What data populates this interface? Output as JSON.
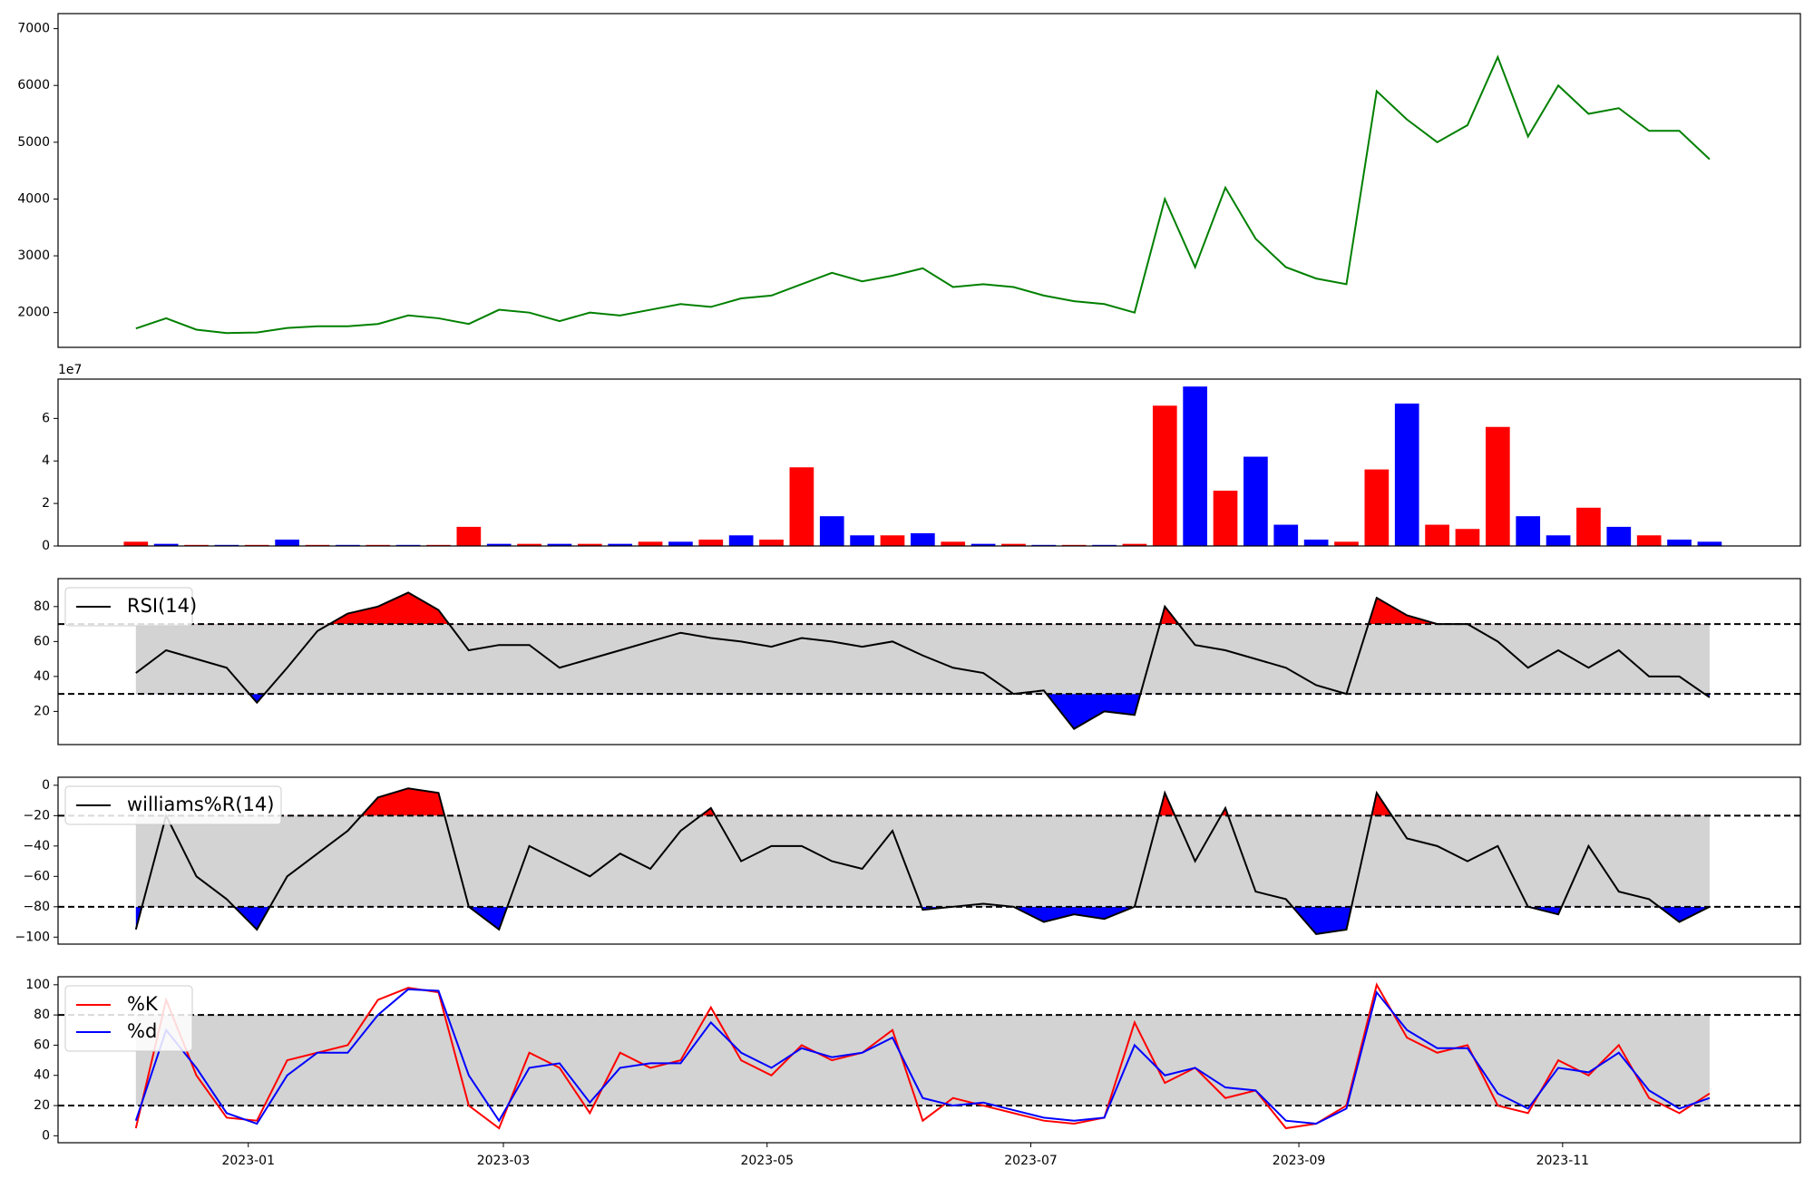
{
  "chart_data": [
    {
      "type": "line",
      "x": [
        -26,
        -19,
        -12,
        -5,
        2,
        9,
        16,
        23,
        30,
        37,
        44,
        51,
        58,
        65,
        72,
        79,
        86,
        93,
        100,
        107,
        114,
        121,
        128,
        135,
        142,
        149,
        156,
        163,
        170,
        177,
        184,
        191,
        198,
        205,
        212,
        219,
        226,
        233,
        240,
        247,
        254,
        261,
        268,
        275,
        282,
        289,
        296,
        303,
        310,
        317,
        324,
        331,
        338
      ],
      "values": [
        1720,
        1900,
        1700,
        1640,
        1650,
        1730,
        1760,
        1760,
        1800,
        1950,
        1900,
        1800,
        2050,
        2000,
        1850,
        2000,
        1950,
        2050,
        2150,
        2100,
        2250,
        2300,
        2500,
        2700,
        2550,
        2650,
        2780,
        2450,
        2500,
        2450,
        2300,
        2200,
        2150,
        2000,
        4000,
        2800,
        4200,
        3300,
        2800,
        2600,
        2500,
        5900,
        5400,
        5000,
        5300,
        6500,
        5100,
        6000,
        5500,
        5600,
        5200,
        5200,
        4700
      ],
      "color": "green",
      "xlim": [
        -44,
        359
      ],
      "ylim": [
        1388,
        7265
      ],
      "yticks": [
        2000,
        3000,
        4000,
        5000,
        6000,
        7000
      ]
    },
    {
      "type": "bar",
      "x": [
        -26,
        -19,
        -12,
        -5,
        2,
        9,
        16,
        23,
        30,
        37,
        44,
        51,
        58,
        65,
        72,
        79,
        86,
        93,
        100,
        107,
        114,
        121,
        128,
        135,
        142,
        149,
        156,
        163,
        170,
        177,
        184,
        191,
        198,
        205,
        212,
        219,
        226,
        233,
        240,
        247,
        254,
        261,
        268,
        275,
        282,
        289,
        296,
        303,
        310,
        317,
        324,
        331,
        338
      ],
      "values": [
        0.2,
        0.1,
        0.05,
        0.05,
        0.05,
        0.3,
        0.05,
        0.05,
        0.05,
        0.05,
        0.05,
        0.9,
        0.1,
        0.1,
        0.1,
        0.1,
        0.1,
        0.2,
        0.2,
        0.3,
        0.5,
        0.3,
        3.7,
        1.4,
        0.5,
        0.5,
        0.6,
        0.2,
        0.1,
        0.1,
        0.05,
        0.05,
        0.05,
        0.1,
        6.6,
        7.5,
        2.6,
        4.2,
        1.0,
        0.3,
        0.2,
        3.6,
        6.7,
        1.0,
        0.8,
        5.6,
        1.4,
        0.5,
        1.8,
        0.9,
        0.5,
        0.3,
        0.2
      ],
      "colors": [
        "red",
        "blue",
        "red",
        "blue",
        "red",
        "blue",
        "red",
        "blue",
        "red",
        "blue",
        "red",
        "red",
        "blue",
        "red",
        "blue",
        "red",
        "blue",
        "red",
        "blue",
        "red",
        "blue",
        "red",
        "red",
        "blue",
        "blue",
        "red",
        "blue",
        "red",
        "blue",
        "red",
        "blue",
        "red",
        "blue",
        "red",
        "red",
        "blue",
        "red",
        "blue",
        "blue",
        "blue",
        "red",
        "red",
        "blue",
        "red",
        "red",
        "red",
        "blue",
        "blue",
        "red",
        "blue",
        "red",
        "blue",
        "blue"
      ],
      "scale_label": "1e7",
      "xlim": [
        -44,
        359
      ],
      "ylim": [
        0,
        7.85
      ],
      "yticks": [
        0,
        2,
        4,
        6
      ]
    },
    {
      "type": "oscillator",
      "x": [
        -26,
        -19,
        -12,
        -5,
        2,
        9,
        16,
        23,
        30,
        37,
        44,
        51,
        58,
        65,
        72,
        79,
        86,
        93,
        100,
        107,
        114,
        121,
        128,
        135,
        142,
        149,
        156,
        163,
        170,
        177,
        184,
        191,
        198,
        205,
        212,
        219,
        226,
        233,
        240,
        247,
        254,
        261,
        268,
        275,
        282,
        289,
        296,
        303,
        310,
        317,
        324,
        331,
        338
      ],
      "series": [
        {
          "name": "RSI(14)",
          "color": "black",
          "fill": true,
          "values": [
            42,
            55,
            50,
            45,
            25,
            45,
            66,
            76,
            80,
            88,
            78,
            55,
            58,
            58,
            45,
            50,
            55,
            60,
            65,
            62,
            60,
            57,
            62,
            60,
            57,
            60,
            52,
            45,
            42,
            30,
            32,
            10,
            20,
            18,
            80,
            58,
            55,
            50,
            45,
            35,
            30,
            85,
            75,
            70,
            70,
            60,
            45,
            55,
            45,
            55,
            40,
            40,
            28
          ]
        }
      ],
      "thresholds": [
        30,
        70
      ],
      "band_color": "lightgray",
      "upper_color": "red",
      "lower_color": "blue",
      "legend": "upper left",
      "xlim": [
        -44,
        359
      ],
      "ylim": [
        1,
        96
      ],
      "yticks": [
        20,
        40,
        60,
        80
      ]
    },
    {
      "type": "oscillator",
      "x": [
        -26,
        -19,
        -12,
        -5,
        2,
        9,
        16,
        23,
        30,
        37,
        44,
        51,
        58,
        65,
        72,
        79,
        86,
        93,
        100,
        107,
        114,
        121,
        128,
        135,
        142,
        149,
        156,
        163,
        170,
        177,
        184,
        191,
        198,
        205,
        212,
        219,
        226,
        233,
        240,
        247,
        254,
        261,
        268,
        275,
        282,
        289,
        296,
        303,
        310,
        317,
        324,
        331,
        338
      ],
      "series": [
        {
          "name": "williams%R(14)",
          "color": "black",
          "fill": true,
          "values": [
            -95,
            -20,
            -60,
            -75,
            -95,
            -60,
            -45,
            -30,
            -8,
            -2,
            -5,
            -80,
            -95,
            -40,
            -50,
            -60,
            -45,
            -55,
            -30,
            -15,
            -50,
            -40,
            -40,
            -50,
            -55,
            -30,
            -82,
            -80,
            -78,
            -80,
            -90,
            -85,
            -88,
            -80,
            -5,
            -50,
            -15,
            -70,
            -75,
            -98,
            -95,
            -5,
            -35,
            -40,
            -50,
            -40,
            -80,
            -85,
            -40,
            -70,
            -75,
            -90,
            -80
          ]
        }
      ],
      "thresholds": [
        -80,
        -20
      ],
      "band_color": "lightgray",
      "upper_color": "red",
      "lower_color": "blue",
      "legend": "upper left",
      "xlim": [
        -44,
        359
      ],
      "ylim": [
        -104.6,
        5.3
      ],
      "yticks": [
        {
          "value": -100,
          "label": "−100"
        },
        {
          "value": -80,
          "label": "−80"
        },
        {
          "value": -60,
          "label": "−60"
        },
        {
          "value": -40,
          "label": "−40"
        },
        {
          "value": -20,
          "label": "−20"
        },
        0
      ]
    },
    {
      "type": "oscillator",
      "x": [
        -26,
        -19,
        -12,
        -5,
        2,
        9,
        16,
        23,
        30,
        37,
        44,
        51,
        58,
        65,
        72,
        79,
        86,
        93,
        100,
        107,
        114,
        121,
        128,
        135,
        142,
        149,
        156,
        163,
        170,
        177,
        184,
        191,
        198,
        205,
        212,
        219,
        226,
        233,
        240,
        247,
        254,
        261,
        268,
        275,
        282,
        289,
        296,
        303,
        310,
        317,
        324,
        331,
        338
      ],
      "series": [
        {
          "name": "%K",
          "color": "red",
          "values": [
            5,
            90,
            40,
            12,
            10,
            50,
            55,
            60,
            90,
            98,
            95,
            20,
            5,
            55,
            45,
            15,
            55,
            45,
            50,
            85,
            50,
            40,
            60,
            50,
            55,
            70,
            10,
            25,
            20,
            15,
            10,
            8,
            12,
            75,
            35,
            45,
            25,
            30,
            5,
            8,
            20,
            100,
            65,
            55,
            60,
            20,
            15,
            50,
            40,
            60,
            25,
            15,
            28
          ]
        },
        {
          "name": "%d",
          "color": "blue",
          "values": [
            10,
            70,
            45,
            15,
            8,
            40,
            55,
            55,
            80,
            97,
            96,
            40,
            10,
            45,
            48,
            22,
            45,
            48,
            48,
            75,
            55,
            45,
            58,
            52,
            55,
            65,
            25,
            20,
            22,
            17,
            12,
            10,
            12,
            60,
            40,
            45,
            32,
            30,
            10,
            8,
            18,
            95,
            70,
            58,
            58,
            28,
            18,
            45,
            42,
            55,
            30,
            18,
            25
          ]
        }
      ],
      "thresholds": [
        20,
        80
      ],
      "band_color": "lightgray",
      "legend": "upper left",
      "xlim": [
        -44,
        359
      ],
      "ylim": [
        -4.6,
        105.3
      ],
      "yticks": [
        0,
        20,
        40,
        60,
        80,
        100
      ],
      "xticks": [
        {
          "value": 0,
          "label": "2023-01"
        },
        {
          "value": 59,
          "label": "2023-03"
        },
        {
          "value": 120,
          "label": "2023-05"
        },
        {
          "value": 181,
          "label": "2023-07"
        },
        {
          "value": 243,
          "label": "2023-09"
        },
        {
          "value": 304,
          "label": "2023-11"
        }
      ]
    }
  ]
}
